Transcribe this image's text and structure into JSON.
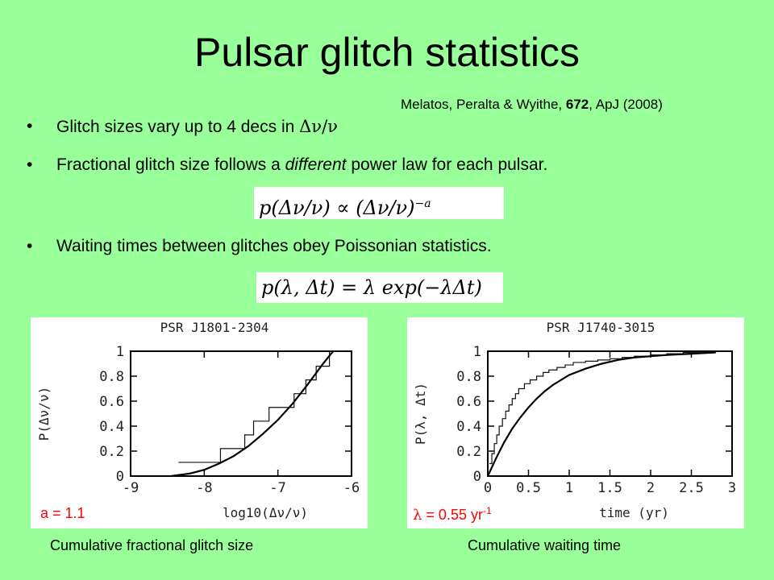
{
  "slide": {
    "title": "Pulsar glitch statistics",
    "citation": {
      "authors": "Melatos, Peralta & Wyithe, ",
      "volume": "672",
      "journal": ", ApJ (2008)"
    },
    "bullets": [
      {
        "text": "Glitch sizes vary up to 4 decs in ",
        "symbol": "Δν/ν"
      },
      {
        "text_before": "Fractional glitch size follows a ",
        "emphasis": "different",
        "text_after": " power law for each pulsar."
      },
      {
        "text": "Waiting times between glitches obey Poissonian statistics."
      }
    ],
    "equations": {
      "power_law": {
        "lhs": "p(Δν/ν) ∝ (Δν/ν)",
        "exponent": "−a"
      },
      "poisson": {
        "text": "p(λ, Δt) = λ exp(−λΔt)"
      }
    },
    "notes": {
      "left": "a = 1.1",
      "right_symbol": "λ",
      "right_text": " = 0.55 yr",
      "right_sup": "-1"
    },
    "captions": {
      "left": "Cumulative fractional glitch size",
      "right": "Cumulative waiting time"
    }
  },
  "colors": {
    "background": "#99ff99",
    "note": "#ff0000"
  },
  "chart_data": [
    {
      "type": "line",
      "title": "PSR J1801-2304",
      "ylabel": "P(Δν/ν)",
      "xlabel": "log10(Δν/ν)",
      "xlim": [
        -9,
        -6
      ],
      "ylim": [
        0,
        1
      ],
      "xticks": [
        "-9",
        "-8",
        "-7",
        "-6"
      ],
      "yticks": [
        "0",
        "0.2",
        "0.4",
        "0.6",
        "0.8",
        "1"
      ],
      "series": [
        {
          "kind": "step",
          "x": [
            -8.35,
            -7.78,
            -7.45,
            -7.33,
            -7.12,
            -6.78,
            -6.62,
            -6.48,
            -6.3
          ],
          "y": [
            0.11,
            0.22,
            0.33,
            0.44,
            0.55,
            0.66,
            0.77,
            0.88,
            1.0
          ]
        },
        {
          "kind": "fit",
          "x": [
            -8.45,
            -8.2,
            -8.0,
            -7.8,
            -7.6,
            -7.4,
            -7.2,
            -7.0,
            -6.8,
            -6.6,
            -6.4,
            -6.25
          ],
          "y": [
            0.0,
            0.02,
            0.05,
            0.1,
            0.16,
            0.24,
            0.34,
            0.45,
            0.58,
            0.73,
            0.89,
            1.0
          ]
        }
      ]
    },
    {
      "type": "line",
      "title": "PSR J1740-3015",
      "ylabel": "P(λ, Δt)",
      "xlabel": "time (yr)",
      "xlim": [
        0,
        3
      ],
      "ylim": [
        0,
        1
      ],
      "xticks": [
        "0",
        "0.5",
        "1",
        "1.5",
        "2",
        "2.5",
        "3"
      ],
      "yticks": [
        "0",
        "0.2",
        "0.4",
        "0.6",
        "0.8",
        "1"
      ],
      "series": [
        {
          "kind": "step",
          "x": [
            0.02,
            0.05,
            0.08,
            0.11,
            0.14,
            0.18,
            0.22,
            0.26,
            0.3,
            0.34,
            0.38,
            0.45,
            0.52,
            0.6,
            0.68,
            0.75,
            0.85,
            0.95,
            1.05,
            1.2,
            1.35,
            1.5,
            1.65,
            1.8,
            2.0,
            2.2,
            2.4,
            2.6,
            2.8
          ],
          "y": [
            0.1,
            0.18,
            0.26,
            0.33,
            0.4,
            0.46,
            0.52,
            0.57,
            0.62,
            0.66,
            0.7,
            0.74,
            0.77,
            0.8,
            0.83,
            0.85,
            0.87,
            0.89,
            0.91,
            0.92,
            0.93,
            0.94,
            0.95,
            0.96,
            0.97,
            0.98,
            0.99,
            0.995,
            1.0
          ]
        },
        {
          "kind": "fit",
          "x": [
            0,
            0.1,
            0.2,
            0.3,
            0.4,
            0.5,
            0.6,
            0.7,
            0.8,
            1.0,
            1.2,
            1.4,
            1.6,
            1.8,
            2.0,
            2.2,
            2.5,
            2.8
          ],
          "y": [
            0.0,
            0.14,
            0.27,
            0.38,
            0.47,
            0.55,
            0.62,
            0.68,
            0.73,
            0.81,
            0.86,
            0.9,
            0.93,
            0.95,
            0.96,
            0.97,
            0.98,
            0.99
          ]
        }
      ]
    }
  ]
}
